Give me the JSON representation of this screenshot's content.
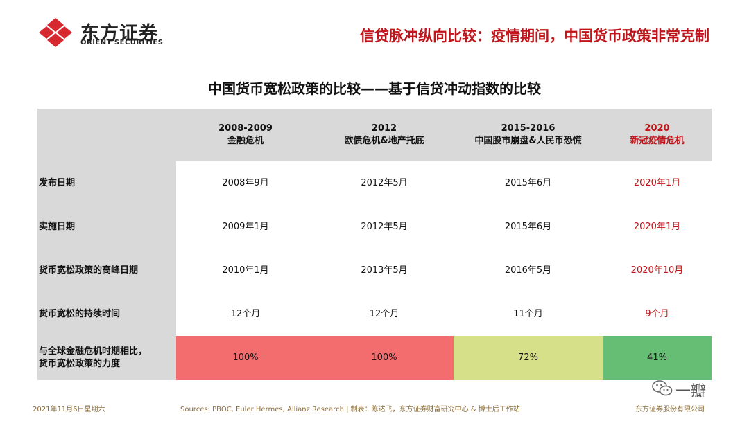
{
  "brand": {
    "name_cn": "东方证券",
    "name_en": "ORIENT SECURITIES",
    "logo_color": "#d7282f"
  },
  "slide_title": "信贷脉冲纵向比较：疫情期间，中国货币政策非常克制",
  "table": {
    "title": "中国货币宽松政策的比较——基于信贷冲动指数的比较",
    "columns": [
      {
        "year": "2008-2009",
        "event": "金融危机"
      },
      {
        "year": "2012",
        "event": "欧债危机&地产托底"
      },
      {
        "year": "2015-2016",
        "event": "中国股市崩盘&人民币恐慌"
      },
      {
        "year": "2020",
        "event": "新冠疫情危机"
      }
    ],
    "rows": [
      {
        "label": "发布日期",
        "cells": [
          "2008年9月",
          "2012年5月",
          "2015年6月",
          "2020年1月"
        ]
      },
      {
        "label": "实施日期",
        "cells": [
          "2009年1月",
          "2012年5月",
          "2015年6月",
          "2020年1月"
        ]
      },
      {
        "label": "货币宽松政策的高峰日期",
        "cells": [
          "2010年1月",
          "2013年5月",
          "2016年5月",
          "2020年10月"
        ]
      },
      {
        "label": "货币宽松的持续时间",
        "cells": [
          "12个月",
          "12个月",
          "11个月",
          "9个月"
        ]
      },
      {
        "label_line1": "与全球金融危机时期相比，",
        "label_line2": "货币宽松政策的力度",
        "cells": [
          "100%",
          "100%",
          "72%",
          "41%"
        ]
      }
    ],
    "intensity_colors": [
      "#f36d6f",
      "#f36d6f",
      "#d6e088",
      "#66bd74"
    ],
    "highlight_color": "#c0141b"
  },
  "footer": {
    "date": "2021年11月6日星期六",
    "sources": "Sources: PBOC, Euler Hermes, Allianz Research | 制表：陈达飞，东方证券财富研究中心 & 博士后工作站",
    "company": "东方证券股份有限公司"
  },
  "watermark": {
    "text": "一瓣",
    "icon": "wechat-icon"
  }
}
